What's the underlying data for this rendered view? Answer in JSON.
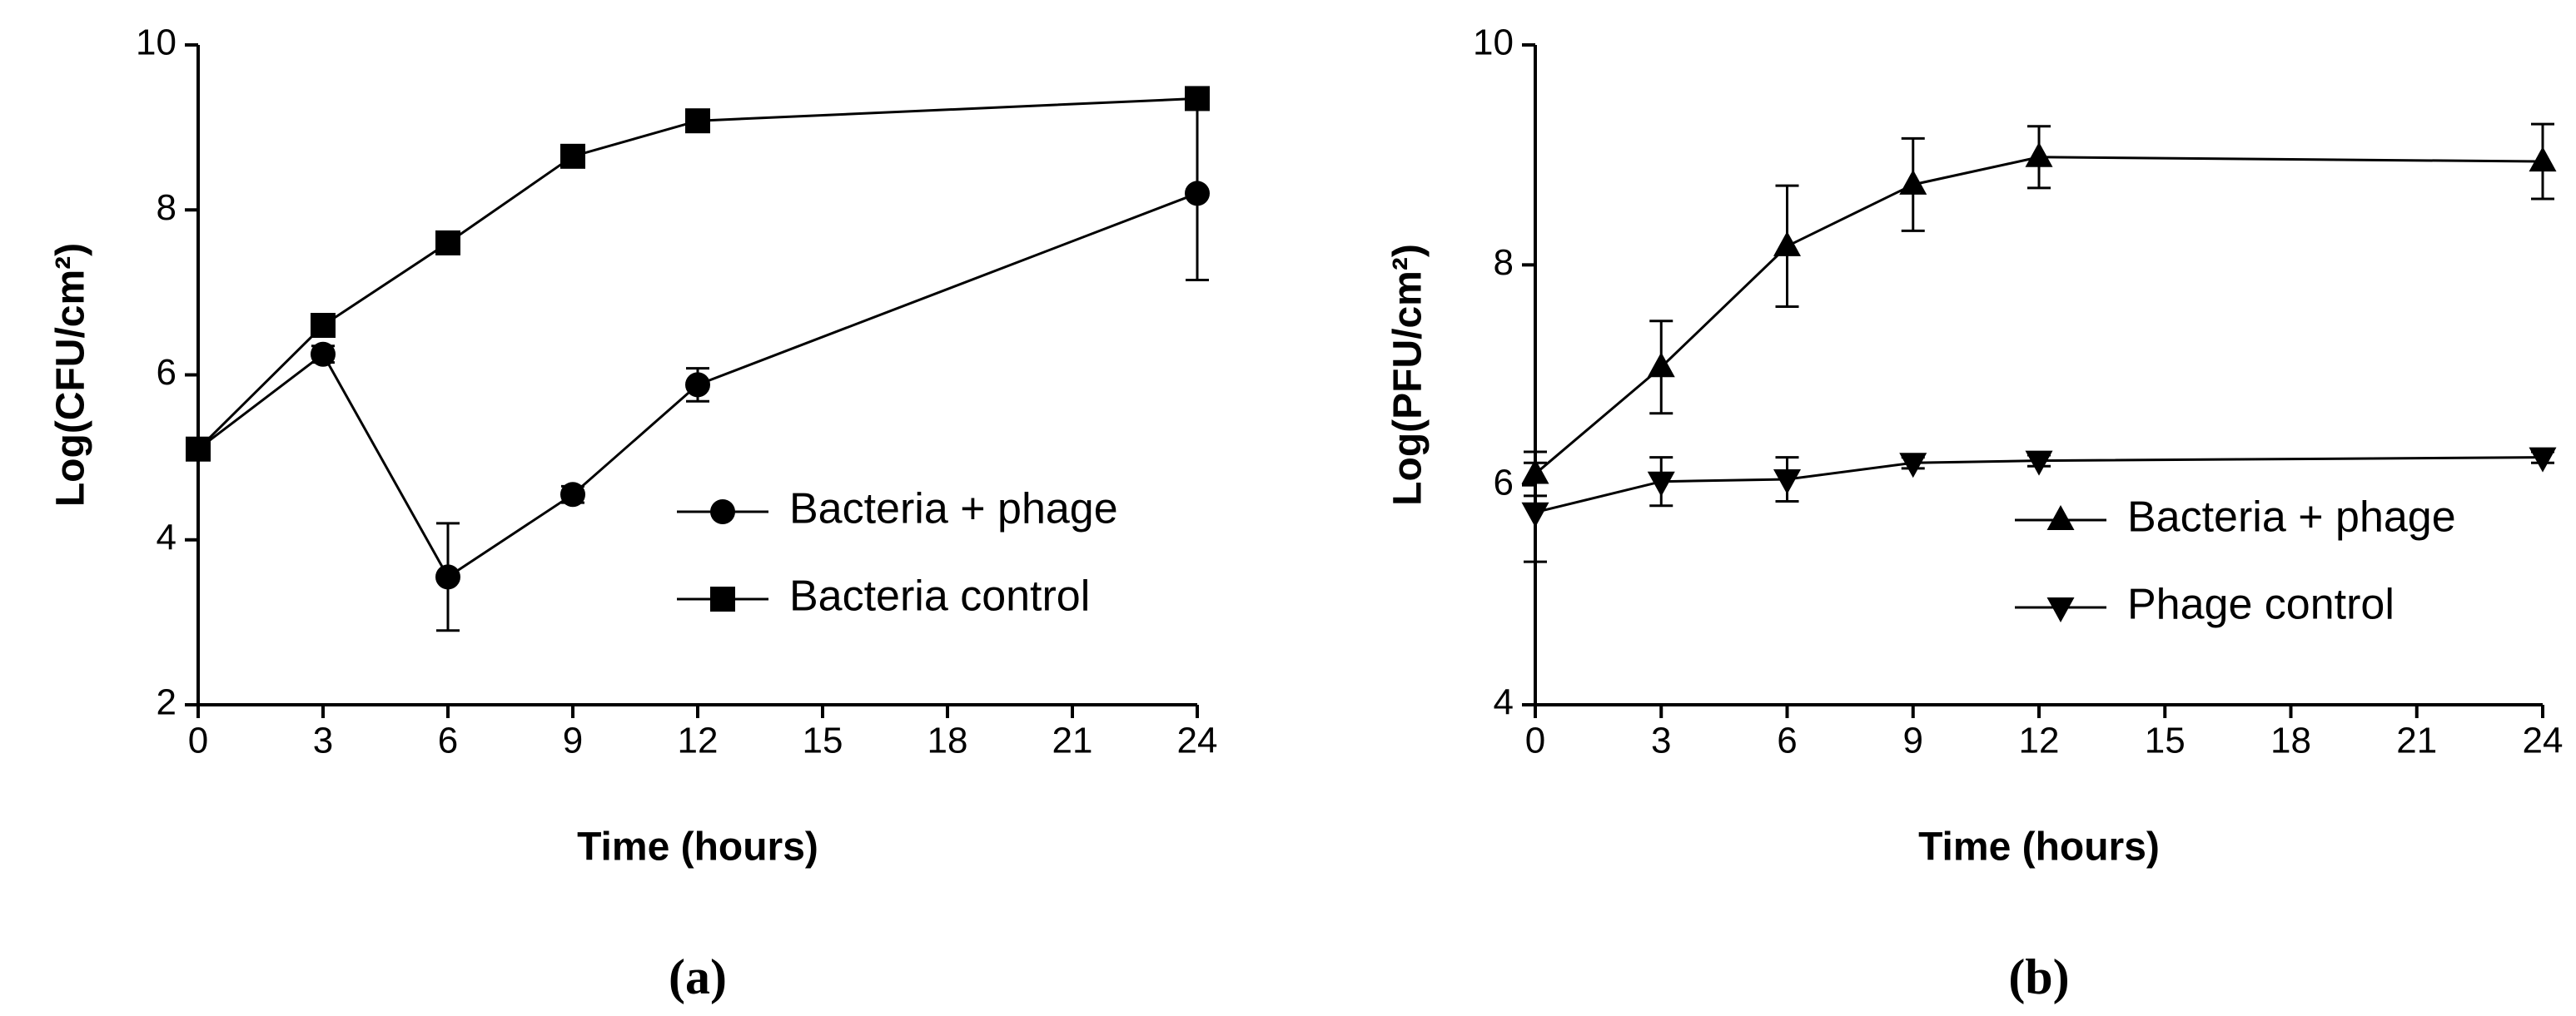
{
  "chart_data": [
    {
      "type": "line",
      "panel_label": "(a)",
      "xlabel": "Time (hours)",
      "ylabel": "Log(CFU/cm²)",
      "x": [
        0,
        3,
        6,
        9,
        12,
        24
      ],
      "xlim": [
        0,
        24
      ],
      "xticks": [
        0,
        3,
        6,
        9,
        12,
        15,
        18,
        21,
        24
      ],
      "ylim": [
        2,
        10
      ],
      "yticks": [
        2,
        4,
        6,
        8,
        10
      ],
      "legend": "lower right",
      "series": [
        {
          "name": "Bacteria + phage",
          "color": "#000000",
          "marker": "circle",
          "values": [
            5.1,
            6.25,
            3.55,
            4.55,
            5.88,
            8.2
          ],
          "errors": [
            0.1,
            0.1,
            0.65,
            0.1,
            0.2,
            1.05
          ]
        },
        {
          "name": "Bacteria control",
          "color": "#000000",
          "marker": "square",
          "values": [
            5.1,
            6.6,
            7.6,
            8.65,
            9.08,
            9.35
          ],
          "errors": [
            0.1,
            0.1,
            0.1,
            0.1,
            0.1,
            0.1
          ]
        }
      ]
    },
    {
      "type": "line",
      "panel_label": "(b)",
      "xlabel": "Time (hours)",
      "ylabel": "Log(PFU/cm²)",
      "x": [
        0,
        3,
        6,
        9,
        12,
        24
      ],
      "xlim": [
        0,
        24
      ],
      "xticks": [
        0,
        3,
        6,
        9,
        12,
        15,
        18,
        21,
        24
      ],
      "ylim": [
        4,
        10
      ],
      "yticks": [
        4,
        6,
        8,
        10
      ],
      "legend": "lower right",
      "series": [
        {
          "name": "Bacteria + phage",
          "color": "#000000",
          "marker": "triangle-up",
          "values": [
            6.1,
            7.07,
            8.17,
            8.73,
            8.98,
            8.94
          ],
          "errors": [
            0.2,
            0.42,
            0.55,
            0.42,
            0.28,
            0.34
          ]
        },
        {
          "name": "Phage control",
          "color": "#000000",
          "marker": "triangle-down",
          "values": [
            5.75,
            6.03,
            6.05,
            6.2,
            6.22,
            6.25
          ],
          "errors": [
            0.45,
            0.22,
            0.2,
            0.05,
            0.05,
            0.05
          ]
        }
      ]
    }
  ]
}
